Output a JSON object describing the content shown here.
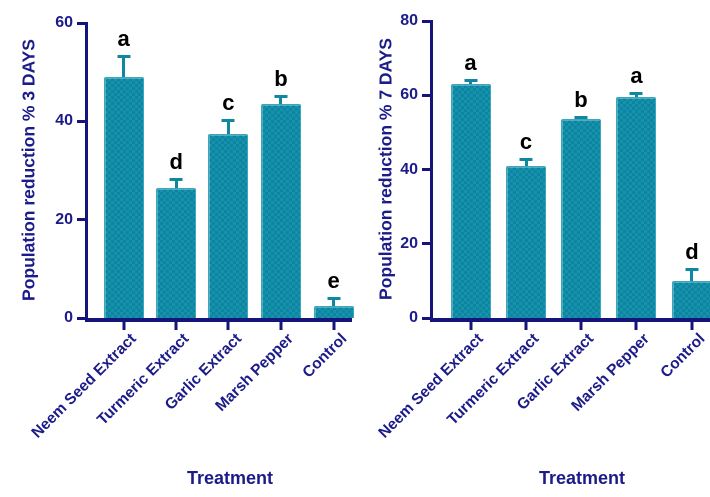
{
  "colors": {
    "navy": "#1b1b8a",
    "axis": "#14147a",
    "teal": "#1692ac",
    "teal_dark": "#0d85a0",
    "teal_edge": "#3ba7bd",
    "teal_error": "#0f87a1",
    "purple": "#8c2386",
    "background": "#ffffff"
  },
  "chart_data": [
    {
      "type": "bar",
      "ylabel": "Population reduction % 3 DAYS",
      "xlabel": "Treatment",
      "categories": [
        "Neem Seed Extract",
        "Turmeric Extract",
        "Garlic Extract",
        "Marsh Pepper",
        "Control"
      ],
      "values": [
        49,
        26.5,
        37.5,
        43.5,
        2.5
      ],
      "errors": [
        4.5,
        2,
        3,
        1.8,
        1.8
      ],
      "sig_letters": [
        "a",
        "d",
        "c",
        "b",
        "e"
      ],
      "ylim": [
        0,
        60
      ],
      "yticks": [
        0,
        20,
        40,
        60
      ],
      "grid": false,
      "legend": false
    },
    {
      "type": "bar",
      "ylabel": "Population reduction % 7 DAYS",
      "xlabel": "Treatment",
      "categories": [
        "Neem Seed Extract",
        "Turmeric Extract",
        "Garlic Extract",
        "Marsh Pepper",
        "Control"
      ],
      "values": [
        63,
        41,
        53.5,
        59.5,
        10
      ],
      "errors": [
        1.5,
        2.2,
        1,
        1.5,
        3.5
      ],
      "sig_letters": [
        "a",
        "c",
        "b",
        "a",
        "d"
      ],
      "ylim": [
        0,
        80
      ],
      "yticks": [
        0,
        20,
        40,
        60,
        80
      ],
      "grid": false,
      "legend": false
    }
  ]
}
